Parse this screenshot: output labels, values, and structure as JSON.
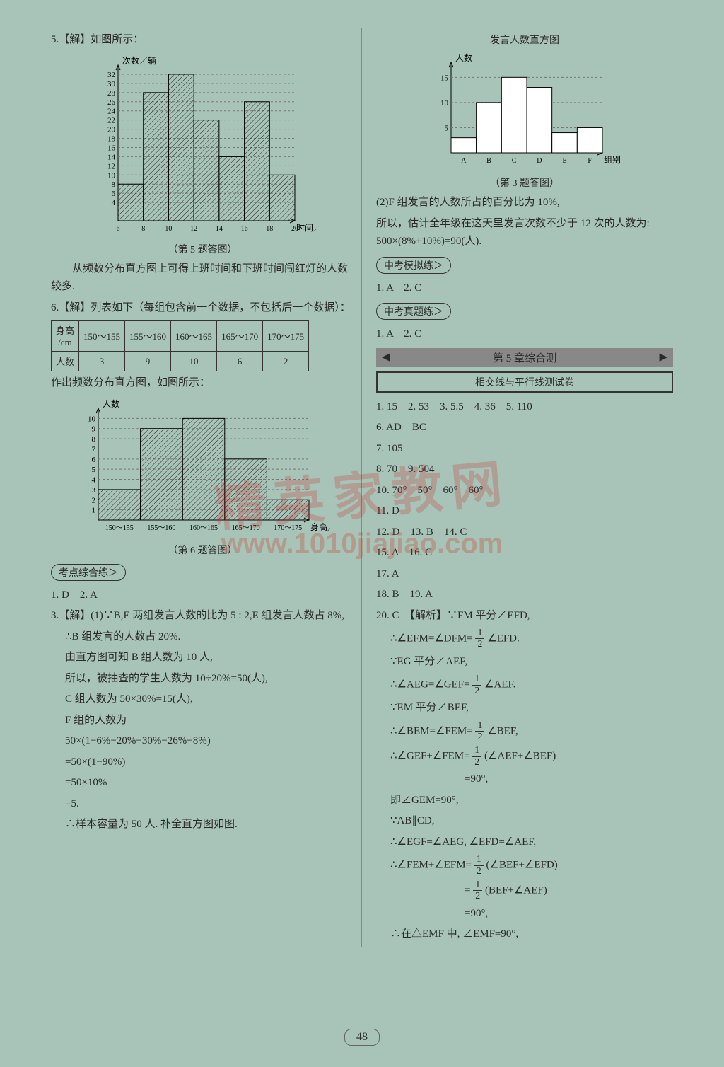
{
  "page_number": "48",
  "watermark1": "精英家教网",
  "watermark2": "www.1010jiajiao.com",
  "left": {
    "q5_header": "5.【解】如图所示：",
    "chart1": {
      "type": "histogram",
      "ylabel": "次数／辆",
      "xlabel": "时间／时",
      "y_ticks": [
        "4",
        "6",
        "8",
        "10",
        "12",
        "14",
        "16",
        "18",
        "20",
        "22",
        "24",
        "26",
        "28",
        "30",
        "32"
      ],
      "x_ticks": [
        "6",
        "8",
        "10",
        "12",
        "14",
        "16",
        "18",
        "20"
      ],
      "bars": [
        8,
        28,
        32,
        22,
        14,
        26,
        10
      ],
      "bar_color": "#999",
      "hatched": true,
      "ylim": [
        0,
        34
      ]
    },
    "chart1_caption": "（第 5 题答图）",
    "q5_text1": "　　从频数分布直方图上可得上班时间和下班时间闯红灯的人数较多.",
    "q6_header": "6.【解】列表如下（每组包含前一个数据，不包括后一个数据）：",
    "table": {
      "row1": [
        "身高\n/cm",
        "150～155",
        "155～160",
        "160～165",
        "165～170",
        "170～175"
      ],
      "row2": [
        "人数",
        "3",
        "9",
        "10",
        "6",
        "2"
      ]
    },
    "q6_text1": "作出频数分布直方图，如图所示：",
    "chart2": {
      "type": "histogram",
      "ylabel": "人数",
      "xlabel": "身高／cm",
      "y_ticks": [
        "1",
        "2",
        "3",
        "4",
        "5",
        "6",
        "7",
        "8",
        "9",
        "10"
      ],
      "x_ticks": [
        "150～155",
        "155～160",
        "160～165",
        "165～170",
        "170～175"
      ],
      "bars": [
        3,
        9,
        10,
        6,
        2
      ],
      "bar_color": "#999",
      "hatched": true,
      "ylim": [
        0,
        11
      ]
    },
    "chart2_caption": "（第 6 题答图）",
    "section1": "考点综合练＞",
    "a1": "1. D　2. A",
    "q3_lines": [
      "3.【解】(1)∵B,E 两组发言人数的比为 5 : 2,E 组发言人数占 8%,",
      "∴B 组发言的人数占 20%.",
      "由直方图可知 B 组人数为 10 人,",
      "所以，被抽查的学生人数为 10÷20%=50(人),",
      "C 组人数为 50×30%=15(人),",
      "F 组的人数为",
      "50×(1−6%−20%−30%−26%−8%)",
      "=50×(1−90%)",
      "=50×10%",
      "=5.",
      "∴样本容量为 50 人. 补全直方图如图."
    ]
  },
  "right": {
    "chart3_title": "发言人数直方图",
    "chart3": {
      "type": "histogram",
      "ylabel": "人数",
      "xlabel": "组别",
      "y_ticks": [
        "5",
        "10",
        "15"
      ],
      "x_ticks": [
        "A",
        "B",
        "C",
        "D",
        "E",
        "F"
      ],
      "bars": [
        3,
        10,
        15,
        13,
        4,
        5
      ],
      "bar_color": "#fff",
      "hatched": false,
      "ylim": [
        0,
        18
      ]
    },
    "chart3_caption": "（第 3 题答图）",
    "r_text1": "(2)F 组发言的人数所占的百分比为 10%,",
    "r_text2": "所以，估计全年级在这天里发言次数不少于 12 次的人数为: 500×(8%+10%)=90(人).",
    "pill1": "中考模拟练＞",
    "pill1_ans": "1. A　2. C",
    "pill2": "中考真题练＞",
    "pill2_ans": "1. A　2. C",
    "banner": "第 5 章综合测",
    "box": "相交线与平行线测试卷",
    "answers": [
      "1. 15　2. 53　3. 5.5　4. 36　5. 110",
      "6. AD　BC",
      "7. 105",
      "8. 70　9. 504",
      "10. 70°　50°　60°　60°",
      "11. D",
      "12. D　13. B　14. C",
      "15. A　16. C",
      "17. A",
      "18. B　19. A"
    ],
    "q20_header": "20. C　【解析】∵FM 平分∠EFD,",
    "q20_lines": [
      "∴∠EFM=∠DFM= {frac12} ∠EFD.",
      "∵EG 平分∠AEF,",
      "∴∠AEG=∠GEF= {frac12} ∠AEF.",
      "∵EM 平分∠BEF,",
      "∴∠BEM=∠FEM= {frac12} ∠BEF,",
      "∴∠GEF+∠FEM= {frac12} (∠AEF+∠BEF)",
      "　　　　　　　=90°,",
      "即∠GEM=90°,",
      "∵AB∥CD,",
      "∴∠EGF=∠AEG, ∠EFD=∠AEF,",
      "∴∠FEM+∠EFM= {frac12} (∠BEF+∠EFD)",
      "　　　　　　　= {frac12} (BEF+∠AEF)",
      "　　　　　　　=90°,",
      "∴在△EMF 中, ∠EMF=90°,"
    ]
  }
}
